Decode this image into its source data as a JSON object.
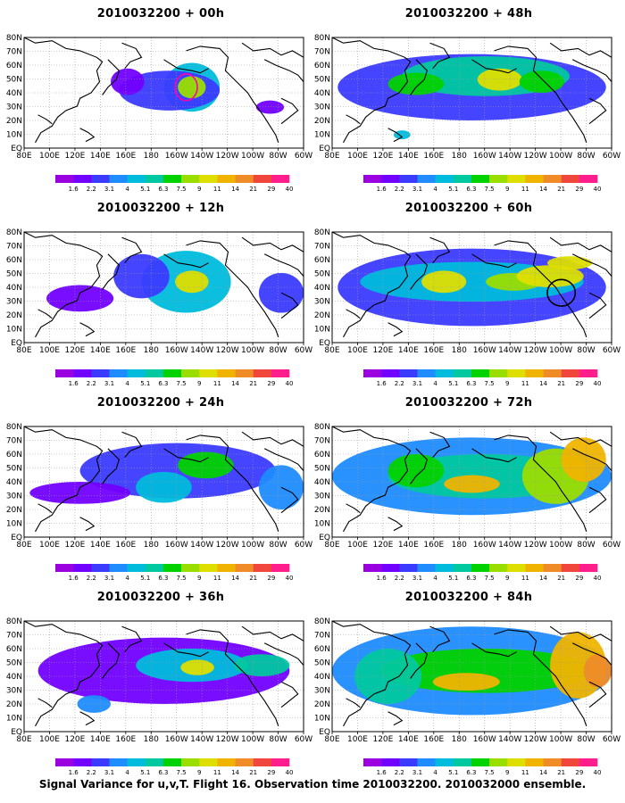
{
  "panels": [
    {
      "title": "2010032200 + 00h",
      "col": 0,
      "row": 0,
      "blobs": [
        [
          0.6,
          0.45,
          0.1,
          0.22,
          4
        ],
        [
          0.52,
          0.48,
          0.18,
          0.18,
          2
        ],
        [
          0.37,
          0.4,
          0.06,
          0.12,
          1
        ],
        [
          0.6,
          0.45,
          0.05,
          0.1,
          7
        ],
        [
          0.88,
          0.63,
          0.05,
          0.06,
          1
        ]
      ],
      "rings": [
        [
          0.58,
          0.45,
          0.04,
          0.12,
          "#ff00aa"
        ]
      ]
    },
    {
      "title": "2010032200 + 12h",
      "col": 0,
      "row": 1,
      "blobs": [
        [
          0.58,
          0.45,
          0.16,
          0.28,
          4
        ],
        [
          0.6,
          0.45,
          0.06,
          0.1,
          8
        ],
        [
          0.42,
          0.4,
          0.1,
          0.2,
          2
        ],
        [
          0.2,
          0.6,
          0.12,
          0.12,
          1
        ],
        [
          0.92,
          0.55,
          0.08,
          0.18,
          2
        ]
      ],
      "rings": []
    },
    {
      "title": "2010032200 + 24h",
      "col": 0,
      "row": 2,
      "blobs": [
        [
          0.55,
          0.4,
          0.35,
          0.25,
          2
        ],
        [
          0.65,
          0.35,
          0.1,
          0.12,
          6
        ],
        [
          0.5,
          0.55,
          0.1,
          0.14,
          4
        ],
        [
          0.2,
          0.6,
          0.18,
          0.1,
          1
        ],
        [
          0.92,
          0.55,
          0.08,
          0.2,
          3
        ]
      ],
      "rings": []
    },
    {
      "title": "2010032200 + 36h",
      "col": 0,
      "row": 3,
      "blobs": [
        [
          0.5,
          0.45,
          0.45,
          0.3,
          1
        ],
        [
          0.6,
          0.4,
          0.2,
          0.15,
          4
        ],
        [
          0.62,
          0.42,
          0.06,
          0.07,
          8
        ],
        [
          0.85,
          0.4,
          0.1,
          0.1,
          5
        ],
        [
          0.25,
          0.75,
          0.06,
          0.08,
          3
        ]
      ],
      "rings": []
    },
    {
      "title": "2010032200 + 48h",
      "col": 1,
      "row": 0,
      "blobs": [
        [
          0.5,
          0.45,
          0.48,
          0.3,
          2
        ],
        [
          0.55,
          0.35,
          0.3,
          0.18,
          5
        ],
        [
          0.6,
          0.38,
          0.08,
          0.1,
          8
        ],
        [
          0.3,
          0.42,
          0.1,
          0.1,
          6
        ],
        [
          0.75,
          0.4,
          0.08,
          0.1,
          6
        ],
        [
          0.25,
          0.88,
          0.03,
          0.04,
          4
        ]
      ],
      "rings": []
    },
    {
      "title": "2010032200 + 60h",
      "col": 1,
      "row": 1,
      "blobs": [
        [
          0.5,
          0.5,
          0.48,
          0.35,
          2
        ],
        [
          0.5,
          0.45,
          0.4,
          0.18,
          4
        ],
        [
          0.4,
          0.45,
          0.08,
          0.1,
          8
        ],
        [
          0.65,
          0.45,
          0.1,
          0.08,
          7
        ],
        [
          0.78,
          0.4,
          0.12,
          0.1,
          8
        ],
        [
          0.85,
          0.28,
          0.08,
          0.06,
          8
        ]
      ],
      "rings": [
        [
          0.82,
          0.55,
          0.05,
          0.12,
          "#000000"
        ]
      ]
    },
    {
      "title": "2010032200 + 72h",
      "col": 1,
      "row": 2,
      "blobs": [
        [
          0.5,
          0.45,
          0.5,
          0.35,
          3
        ],
        [
          0.55,
          0.45,
          0.35,
          0.2,
          5
        ],
        [
          0.5,
          0.52,
          0.1,
          0.08,
          9
        ],
        [
          0.8,
          0.45,
          0.12,
          0.25,
          7
        ],
        [
          0.9,
          0.3,
          0.08,
          0.2,
          9
        ],
        [
          0.3,
          0.4,
          0.1,
          0.15,
          6
        ]
      ],
      "rings": []
    },
    {
      "title": "2010032200 + 84h",
      "col": 1,
      "row": 3,
      "blobs": [
        [
          0.5,
          0.45,
          0.5,
          0.4,
          3
        ],
        [
          0.55,
          0.45,
          0.38,
          0.2,
          6
        ],
        [
          0.48,
          0.55,
          0.12,
          0.08,
          9
        ],
        [
          0.88,
          0.4,
          0.1,
          0.3,
          9
        ],
        [
          0.95,
          0.45,
          0.05,
          0.15,
          10
        ],
        [
          0.2,
          0.5,
          0.12,
          0.25,
          5
        ]
      ],
      "rings": []
    }
  ],
  "axes": {
    "x_ticks": [
      "80E",
      "100E",
      "120E",
      "140E",
      "160E",
      "180",
      "160W",
      "140W",
      "120W",
      "100W",
      "80W",
      "60W"
    ],
    "y_ticks": [
      "EQ",
      "10N",
      "20N",
      "30N",
      "40N",
      "50N",
      "60N",
      "70N",
      "80N"
    ]
  },
  "colorbar": {
    "labels": [
      "1.6",
      "2.2",
      "3.1",
      "4",
      "5.1",
      "6.3",
      "7.5",
      "9",
      "11",
      "14",
      "21",
      "29",
      "40"
    ],
    "colors": [
      "#9a00e0",
      "#7200ff",
      "#3b3bff",
      "#1f8cff",
      "#00bcdc",
      "#00c8a0",
      "#00d200",
      "#9ade00",
      "#dede00",
      "#f0b400",
      "#f08c28",
      "#f0463c",
      "#ff1e8c"
    ]
  },
  "footer": "Signal Variance for u,v,T. Flight 16. Observation time 2010032200. 2010032000 ensemble."
}
